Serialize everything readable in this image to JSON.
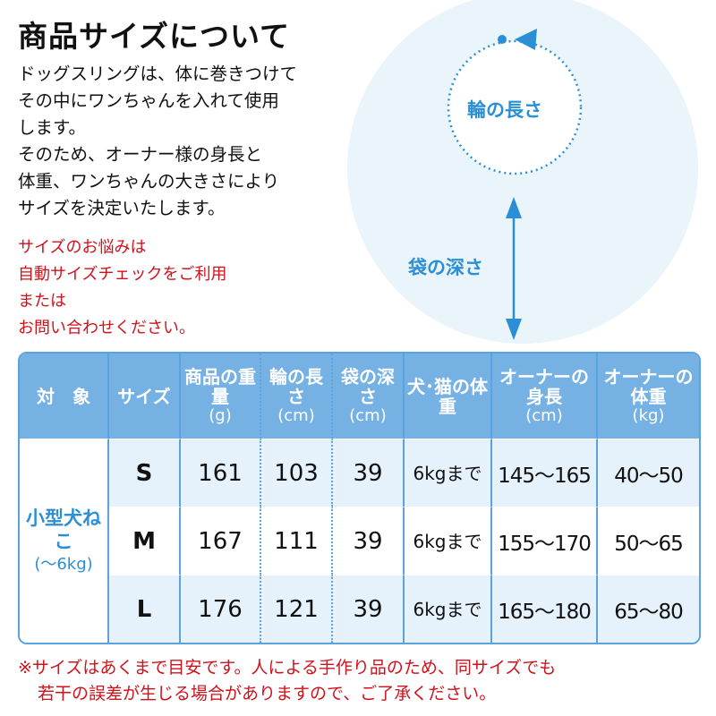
{
  "title": "商品サイズについて",
  "description": [
    "ドッグスリングは、体に巻きつけて",
    "その中にワンちゃんを入れて使用",
    "します。",
    "そのため、オーナー様の身長と",
    "体重、ワンちゃんの大きさにより",
    "サイズを決定いたします。"
  ],
  "note": [
    "サイズのお悩みは",
    "自動サイズチェックをご利用",
    "または",
    "お問い合わせください。"
  ],
  "diagram": {
    "ring_label": "輪の長さ",
    "depth_label": "袋の深さ",
    "accent": "#2b8fd6"
  },
  "table": {
    "headers": [
      {
        "label": "対　象"
      },
      {
        "label": "サイズ"
      },
      {
        "label": "商品の重量",
        "unit": "(g)"
      },
      {
        "label": "輪の長さ",
        "unit": "(cm)"
      },
      {
        "label": "袋の深さ",
        "unit": "(cm)"
      },
      {
        "label": "犬･猫の体重"
      },
      {
        "label": "オーナーの身長",
        "unit": "(cm)"
      },
      {
        "label": "オーナーの体重",
        "unit": "(kg)"
      }
    ],
    "target": {
      "label": "小型犬ねこ",
      "range": "(～6kg)"
    },
    "rows": [
      {
        "size": "S",
        "weight": "161",
        "ring": "103",
        "depth": "39",
        "pet": "6kgまで",
        "owner_height": "145～165",
        "owner_weight": "40～50"
      },
      {
        "size": "M",
        "weight": "167",
        "ring": "111",
        "depth": "39",
        "pet": "6kgまで",
        "owner_height": "155～170",
        "owner_weight": "50～65"
      },
      {
        "size": "L",
        "weight": "176",
        "ring": "121",
        "depth": "39",
        "pet": "6kgまで",
        "owner_height": "165～180",
        "owner_weight": "65～80"
      }
    ]
  },
  "footer": [
    "※サイズはあくまで目安です。人による手作り品のため、同サイズでも",
    "若干の誤差が生じる場合がありますので、ご了承ください。"
  ]
}
